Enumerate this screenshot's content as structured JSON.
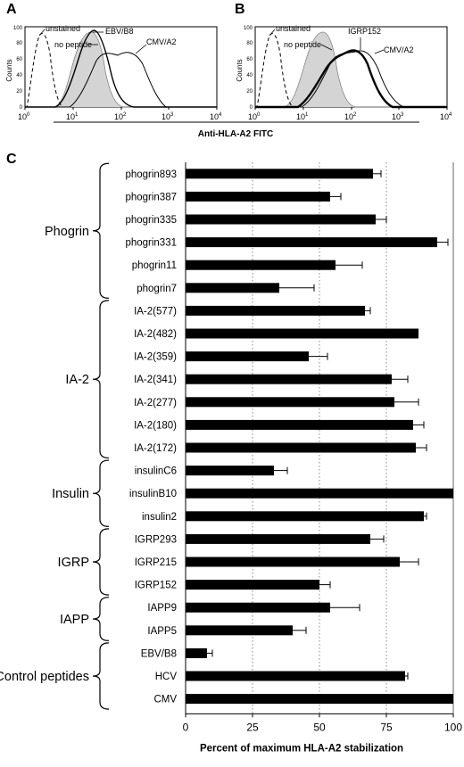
{
  "panels": {
    "a": "A",
    "b": "B",
    "c": "C"
  },
  "histograms": {
    "shared_xlabel": "Anti-HLA-A2 FITC",
    "y_label": "Counts",
    "y_ticks": [
      "0",
      "20",
      "40",
      "60",
      "80",
      "100"
    ],
    "x_ticks": [
      {
        "base": "10",
        "exp": "0"
      },
      {
        "base": "10",
        "exp": "1"
      },
      {
        "base": "10",
        "exp": "2"
      },
      {
        "base": "10",
        "exp": "3"
      },
      {
        "base": "10",
        "exp": "4"
      }
    ],
    "A": {
      "labels": {
        "unstained": "unstained",
        "no_peptide": "no peptide",
        "s1": "EBV/B8",
        "s2": "CMV/A2"
      }
    },
    "B": {
      "labels": {
        "unstained": "unstained",
        "no_peptide": "no peptide",
        "s1": "IGRP152",
        "s2": "CMV/A2"
      }
    }
  },
  "chart_data": {
    "type": "bar",
    "orientation": "horizontal",
    "xlabel": "Percent of maximum HLA-A2 stabilization",
    "xlim": [
      0,
      100
    ],
    "xticks": [
      0,
      25,
      50,
      75,
      100
    ],
    "grid": "dotted vertical at 25, 50, 75",
    "categories": [
      "phogrin893",
      "phogrin387",
      "phogrin335",
      "phogrin331",
      "phogrin11",
      "phogrin7",
      "IA-2(577)",
      "IA-2(482)",
      "IA-2(359)",
      "IA-2(341)",
      "IA-2(277)",
      "IA-2(180)",
      "IA-2(172)",
      "insulinC6",
      "insulinB10",
      "insulin2",
      "IGRP293",
      "IGRP215",
      "IGRP152",
      "IAPP9",
      "IAPP5",
      "EBV/B8",
      "HCV",
      "CMV"
    ],
    "values": [
      70,
      54,
      71,
      94,
      56,
      35,
      67,
      87,
      46,
      77,
      78,
      85,
      86,
      33,
      100,
      89,
      69,
      80,
      50,
      54,
      40,
      8,
      82,
      100
    ],
    "errors": [
      3,
      4,
      4,
      4,
      10,
      13,
      2,
      0,
      7,
      6,
      9,
      4,
      4,
      5,
      0,
      1,
      5,
      7,
      4,
      11,
      5,
      2,
      1,
      0
    ],
    "groups": [
      {
        "name": "Phogrin",
        "start": 0,
        "end": 5
      },
      {
        "name": "IA-2",
        "start": 6,
        "end": 12
      },
      {
        "name": "Insulin",
        "start": 13,
        "end": 15
      },
      {
        "name": "IGRP",
        "start": 16,
        "end": 18
      },
      {
        "name": "IAPP",
        "start": 19,
        "end": 20
      },
      {
        "name": "Control peptides",
        "start": 21,
        "end": 23
      }
    ]
  }
}
